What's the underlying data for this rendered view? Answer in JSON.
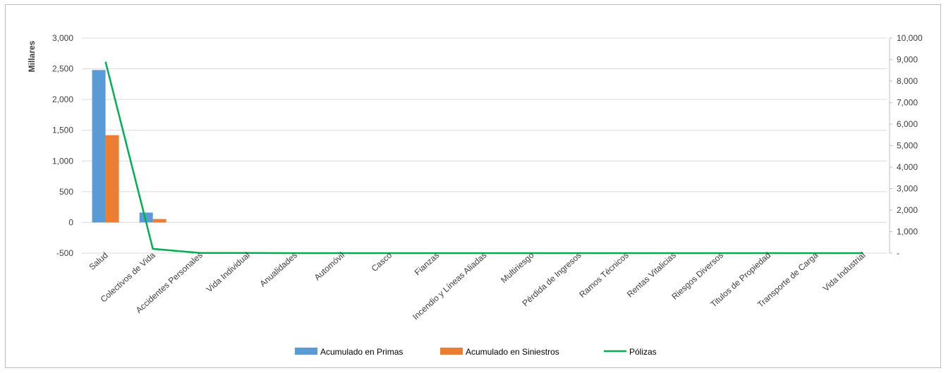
{
  "chart_data": {
    "type": "bar",
    "categories": [
      "Salud",
      "Colectivos de Vida",
      "Accidentes Personales",
      "Vida Individual",
      "Anualidades",
      "Automóvil",
      "Casco",
      "Fianzas",
      "Incendio y Líneas Aliadas",
      "Multiriesgo",
      "Pérdida de Ingresos",
      "Ramos Técnicos",
      "Rentas Vitalicias",
      "Riesgos  Diversos",
      "Titulos de Propiedad",
      "Transporte de Carga",
      "Vida Industrial"
    ],
    "series": [
      {
        "name": "Acumulado en Primas",
        "kind": "bar",
        "axis": "left",
        "color": "#5b9bd5",
        "values": [
          2480,
          160,
          0,
          0,
          0,
          0,
          0,
          0,
          0,
          0,
          0,
          0,
          0,
          0,
          0,
          0,
          0
        ]
      },
      {
        "name": "Acumulado en Siniestros",
        "kind": "bar",
        "axis": "left",
        "color": "#ed7d31",
        "values": [
          1420,
          55,
          0,
          0,
          0,
          0,
          0,
          0,
          0,
          0,
          0,
          0,
          0,
          0,
          0,
          0,
          0
        ]
      },
      {
        "name": "Pólizas",
        "kind": "line",
        "axis": "right",
        "color": "#00b050",
        "values": [
          8900,
          200,
          10,
          5,
          0,
          0,
          0,
          0,
          0,
          0,
          0,
          0,
          0,
          0,
          0,
          0,
          0
        ]
      }
    ],
    "ylabel": "Millares",
    "ylim": [
      -500,
      3000
    ],
    "y_ticks": [
      "-500",
      "0",
      "500",
      "1,000",
      "1,500",
      "2,000",
      "2,500",
      "3,000"
    ],
    "y2lim": [
      0,
      10000
    ],
    "y2_ticks": [
      "-",
      "1,000",
      "2,000",
      "3,000",
      "4,000",
      "5,000",
      "6,000",
      "7,000",
      "8,000",
      "9,000",
      "10,000"
    ],
    "grid": true,
    "legend_position": "bottom"
  }
}
